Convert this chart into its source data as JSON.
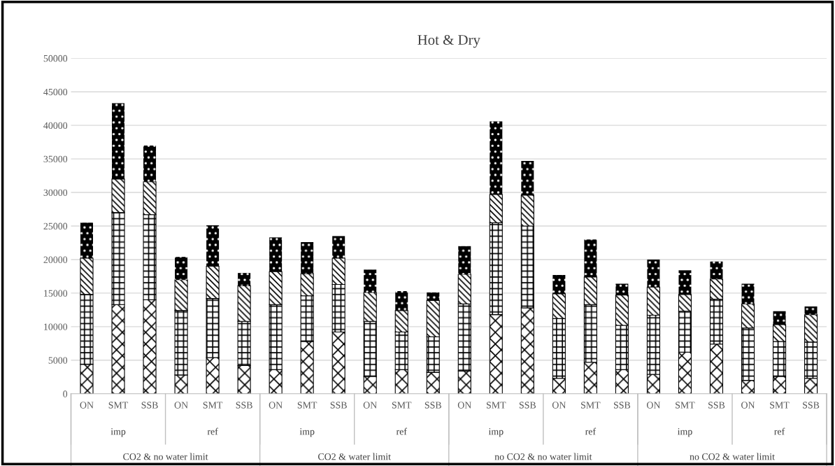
{
  "chart_data": {
    "type": "bar",
    "title": "Hot & Dry",
    "stacked": true,
    "grid": "y",
    "legend": false,
    "categories": [
      "ON",
      "SMT",
      "SSB",
      "ON",
      "SMT",
      "SSB",
      "ON",
      "SMT",
      "SSB",
      "ON",
      "SMT",
      "SSB",
      "ON",
      "SMT",
      "SSB",
      "ON",
      "SMT",
      "SSB",
      "ON",
      "SMT",
      "SSB",
      "ON",
      "SMT",
      "SSB"
    ],
    "annotations": [
      "imp",
      "ref",
      "imp",
      "ref",
      "imp",
      "ref",
      "imp",
      "ref",
      "CO2 & no water limit",
      "CO2 & water limit",
      "no CO2 & no water limit",
      "no CO2 & water limit"
    ],
    "ylim": [
      0,
      50000
    ],
    "yticks": [
      0,
      5000,
      10000,
      15000,
      20000,
      25000,
      30000,
      35000,
      40000,
      45000,
      50000
    ],
    "series": [
      {
        "color": "#000000",
        "values": [
          4400,
          13300,
          14000,
          2800,
          5400,
          4200,
          3600,
          7800,
          9200,
          2600,
          3600,
          3200,
          3400,
          11800,
          12800,
          2300,
          4700,
          3600,
          2900,
          6200,
          7400,
          2000,
          2600,
          2300
        ]
      },
      {
        "color": "#000000",
        "values": [
          10400,
          13700,
          12700,
          9600,
          8800,
          6600,
          9700,
          6800,
          7100,
          8200,
          5600,
          5300,
          10000,
          13700,
          12200,
          8900,
          8600,
          6600,
          8800,
          6100,
          6700,
          7800,
          5200,
          5400
        ]
      },
      {
        "color": "#000000",
        "values": [
          5400,
          5000,
          4900,
          4600,
          4800,
          5300,
          4900,
          3300,
          3900,
          4300,
          3200,
          5400,
          4400,
          4200,
          4600,
          3700,
          4100,
          4500,
          4200,
          2500,
          3000,
          3600,
          2500,
          4100
        ]
      },
      {
        "color": "#000000",
        "values": [
          5300,
          11300,
          5400,
          3400,
          6100,
          1900,
          5100,
          4700,
          3300,
          3400,
          2900,
          1200,
          4200,
          10900,
          5100,
          2800,
          5600,
          1700,
          4100,
          3600,
          2600,
          3000,
          2000,
          1200
        ]
      }
    ]
  }
}
